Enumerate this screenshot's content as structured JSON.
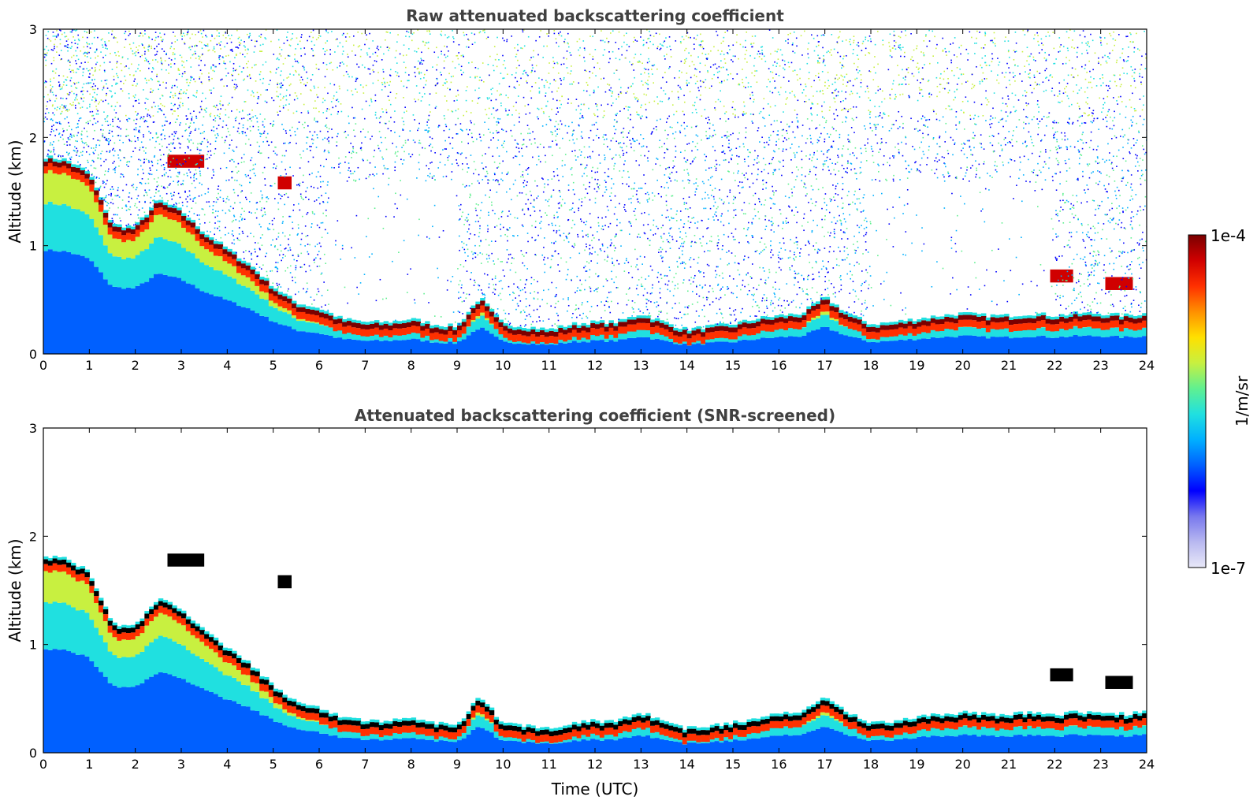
{
  "chart_data": [
    {
      "type": "heatmap",
      "title": "Raw attenuated backscattering coefficient",
      "xlabel": "",
      "ylabel": "Altitude (km)",
      "xlim": [
        0,
        24
      ],
      "ylim": [
        0,
        3
      ],
      "x_ticks": [
        "0",
        "1",
        "2",
        "3",
        "4",
        "5",
        "6",
        "7",
        "8",
        "9",
        "10",
        "11",
        "12",
        "13",
        "14",
        "15",
        "16",
        "17",
        "18",
        "19",
        "20",
        "21",
        "22",
        "23",
        "24"
      ],
      "y_ticks": [
        "0",
        "1",
        "2",
        "3"
      ],
      "screened": false,
      "layer_top_km": {
        "time_utc": [
          0,
          0.5,
          1,
          1.5,
          2,
          2.5,
          3,
          3.5,
          4,
          4.5,
          5,
          5.5,
          6,
          6.5,
          7,
          7.5,
          8,
          8.5,
          9,
          9.5,
          10,
          10.5,
          11,
          11.5,
          12,
          12.5,
          13,
          13.5,
          14,
          14.5,
          15,
          15.5,
          16,
          16.5,
          17,
          17.5,
          18,
          18.5,
          19,
          19.5,
          20,
          20.5,
          21,
          21.5,
          22,
          22.5,
          23,
          23.5,
          24
        ],
        "altitude_km": [
          1.75,
          1.72,
          1.6,
          1.12,
          1.1,
          1.35,
          1.25,
          1.05,
          0.9,
          0.75,
          0.55,
          0.4,
          0.35,
          0.25,
          0.22,
          0.22,
          0.25,
          0.2,
          0.18,
          0.45,
          0.2,
          0.18,
          0.15,
          0.2,
          0.22,
          0.22,
          0.3,
          0.22,
          0.15,
          0.18,
          0.2,
          0.25,
          0.28,
          0.3,
          0.45,
          0.3,
          0.2,
          0.22,
          0.25,
          0.28,
          0.3,
          0.28,
          0.28,
          0.3,
          0.28,
          0.3,
          0.3,
          0.28,
          0.3
        ]
      },
      "elevated_layers": [
        {
          "t0": 2.7,
          "t1": 3.5,
          "alt_km": 1.78
        },
        {
          "t0": 5.1,
          "t1": 5.4,
          "alt_km": 1.58
        },
        {
          "t0": 21.9,
          "t1": 22.4,
          "alt_km": 0.72
        },
        {
          "t0": 23.1,
          "t1": 23.7,
          "alt_km": 0.65
        }
      ]
    },
    {
      "type": "heatmap",
      "title": "Attenuated backscattering coefficient (SNR-screened)",
      "xlabel": "Time (UTC)",
      "ylabel": "Altitude (km)",
      "xlim": [
        0,
        24
      ],
      "ylim": [
        0,
        3
      ],
      "x_ticks": [
        "0",
        "1",
        "2",
        "3",
        "4",
        "5",
        "6",
        "7",
        "8",
        "9",
        "10",
        "11",
        "12",
        "13",
        "14",
        "15",
        "16",
        "17",
        "18",
        "19",
        "20",
        "21",
        "22",
        "23",
        "24"
      ],
      "y_ticks": [
        "0",
        "1",
        "2",
        "3"
      ],
      "screened": true
    }
  ],
  "colorbar": {
    "label": "1/m/sr",
    "max_label": "1e-4",
    "min_label": "1e-7",
    "colors": [
      "#e8e8f8",
      "#b8b8f0",
      "#7878ee",
      "#0000ff",
      "#0060ff",
      "#00b0ff",
      "#20e0e0",
      "#60f090",
      "#c8f040",
      "#ffe000",
      "#ff9000",
      "#ff3000",
      "#d00000",
      "#7a0000"
    ]
  },
  "colors": {
    "title": "#404040",
    "screened_core": "#000000"
  }
}
